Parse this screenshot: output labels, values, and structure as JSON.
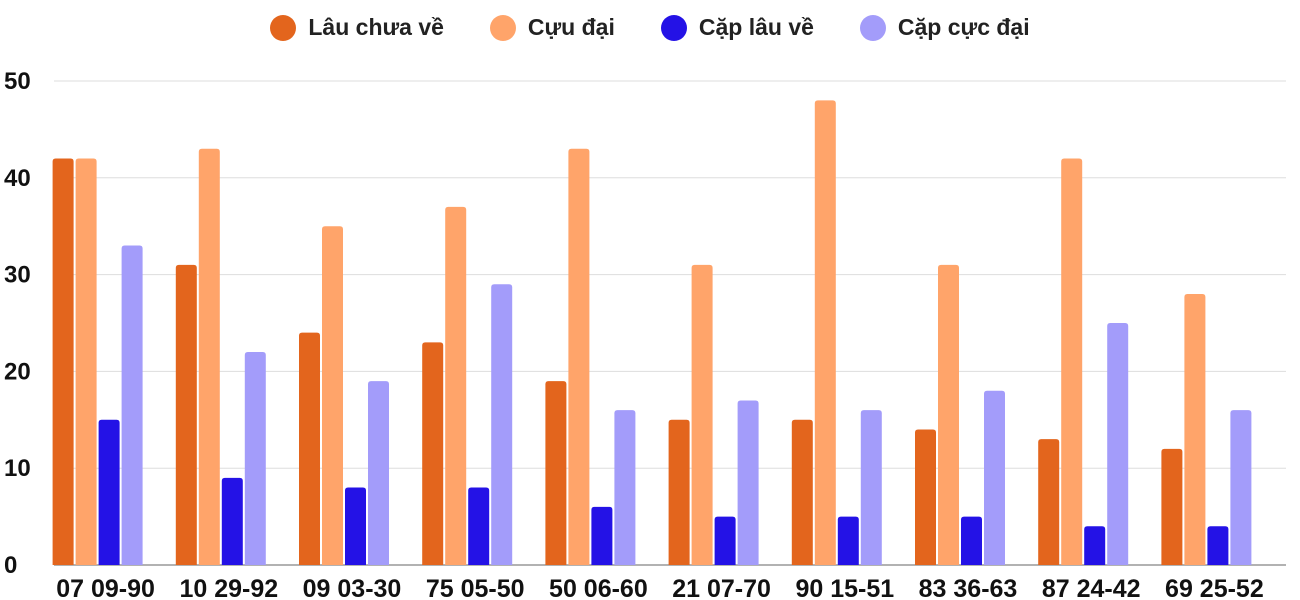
{
  "chart_data": {
    "type": "bar",
    "title": "",
    "xlabel": "",
    "ylabel": "",
    "ylim": [
      0,
      50
    ],
    "yticks": [
      0,
      10,
      20,
      30,
      40,
      50
    ],
    "grid": true,
    "legend_position": "top",
    "categories": [
      "07 09-90",
      "10 29-92",
      "09 03-30",
      "75 05-50",
      "50 06-60",
      "21 07-70",
      "90 15-51",
      "83 36-63",
      "87 24-42",
      "69 25-52"
    ],
    "series": [
      {
        "name": "Lâu chưa về",
        "color": "#e3651d",
        "values": [
          42,
          31,
          24,
          23,
          19,
          15,
          15,
          14,
          13,
          12
        ]
      },
      {
        "name": "Cựu đại",
        "color": "#ffa46a",
        "values": [
          42,
          43,
          35,
          37,
          43,
          31,
          48,
          31,
          42,
          28
        ]
      },
      {
        "name": "Cặp lâu về",
        "color": "#2412e6",
        "values": [
          15,
          9,
          8,
          8,
          6,
          5,
          5,
          5,
          4,
          4
        ]
      },
      {
        "name": "Cặp cực đại",
        "color": "#a39cfa",
        "values": [
          33,
          22,
          19,
          29,
          16,
          17,
          16,
          18,
          25,
          16
        ]
      }
    ]
  }
}
